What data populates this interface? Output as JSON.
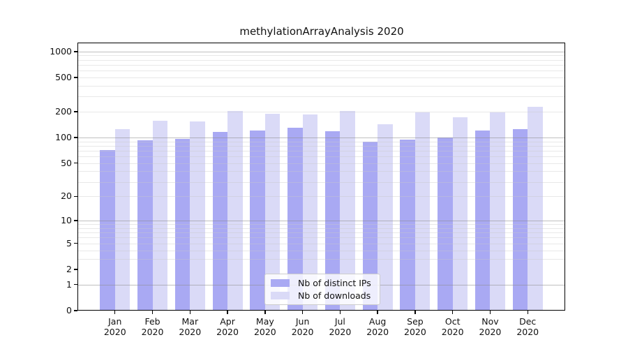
{
  "title": "methylationArrayAnalysis 2020",
  "chart_data": {
    "type": "bar",
    "title": "methylationArrayAnalysis 2020",
    "categories": [
      "Jan 2020",
      "Feb 2020",
      "Mar 2020",
      "Apr 2020",
      "May 2020",
      "Jun 2020",
      "Jul 2020",
      "Aug 2020",
      "Sep 2020",
      "Oct 2020",
      "Nov 2020",
      "Dec 2020"
    ],
    "series": [
      {
        "name": "Nb of distinct IPs",
        "color": "#a9a9f3",
        "values": [
          71,
          93,
          97,
          117,
          120,
          130,
          119,
          89,
          94,
          101,
          120,
          125
        ]
      },
      {
        "name": "Nb of downloads",
        "color": "#dadaf7",
        "values": [
          125,
          157,
          155,
          203,
          190,
          186,
          203,
          143,
          195,
          172,
          195,
          228
        ]
      }
    ],
    "xlabel": "",
    "ylabel": "",
    "yscale": "log1p",
    "yticks": [
      0,
      1,
      2,
      5,
      10,
      20,
      50,
      100,
      200,
      500,
      1000
    ],
    "major_gridlines": [
      1,
      10,
      100,
      1000
    ],
    "minor_gridlines": [
      3,
      4,
      5,
      6,
      7,
      8,
      9,
      20,
      30,
      40,
      50,
      60,
      70,
      80,
      90,
      200,
      300,
      400,
      500,
      600,
      700,
      800,
      900
    ],
    "ylim": [
      0,
      1270
    ],
    "grid": true,
    "legend_position": "lower center",
    "legend": [
      "Nb of distinct IPs",
      "Nb of downloads"
    ],
    "colors": {
      "major_grid": "#8c8c8c",
      "minor_grid": "#c9c9c9",
      "axis": "#000000",
      "text": "#111111",
      "background": "#ffffff"
    }
  }
}
